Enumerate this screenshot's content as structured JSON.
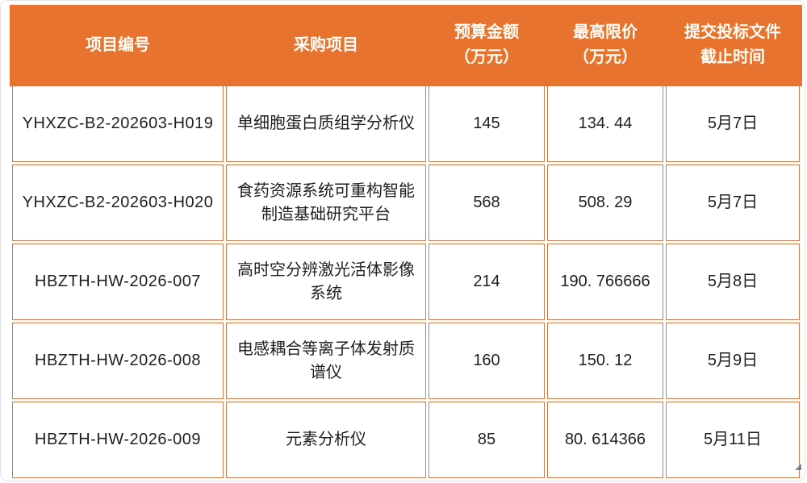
{
  "colors": {
    "header_bg": "#e7732e",
    "header_text": "#fffdf6",
    "cell_border": "#c97c50",
    "body_text": "#1f1f1f"
  },
  "table": {
    "headers": [
      "项目编号",
      "采购项目",
      "预算金额\n（万元）",
      "最高限价\n（万元）",
      "提交投标文件\n截止时间"
    ],
    "rows": [
      {
        "project_no": "YHXZC-B2-202603-H019",
        "item": "单细胞蛋白质组学分析仪",
        "budget": "145",
        "max_price": "134. 44",
        "deadline": "5月7日"
      },
      {
        "project_no": "YHXZC-B2-202603-H020",
        "item": "食药资源系统可重构智能制造基础研究平台",
        "budget": "568",
        "max_price": "508. 29",
        "deadline": "5月7日"
      },
      {
        "project_no": "HBZTH-HW-2026-007",
        "item": "高时空分辨激光活体影像系统",
        "budget": "214",
        "max_price": "190. 766666",
        "deadline": "5月8日"
      },
      {
        "project_no": "HBZTH-HW-2026-008",
        "item": "电感耦合等离子体发射质谱仪",
        "budget": "160",
        "max_price": "150. 12",
        "deadline": "5月9日"
      },
      {
        "project_no": "HBZTH-HW-2026-009",
        "item": "元素分析仪",
        "budget": "85",
        "max_price": "80. 614366",
        "deadline": "5月11日"
      }
    ]
  }
}
